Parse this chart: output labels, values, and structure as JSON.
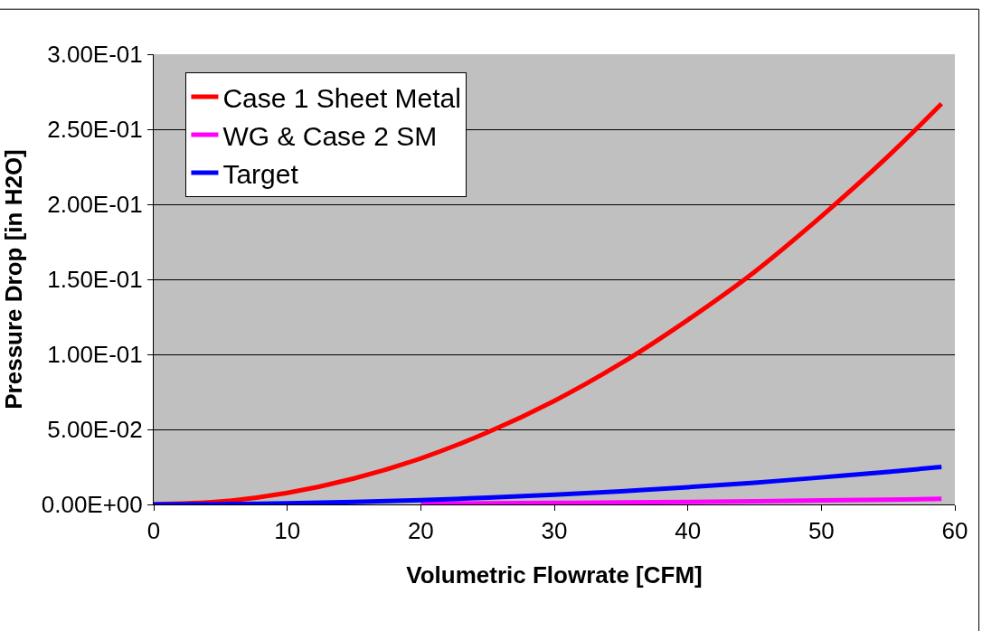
{
  "chart_data": {
    "type": "line",
    "xlabel": "Volumetric Flowrate [CFM]",
    "ylabel": "Pressure Drop [in H2O]",
    "x": [
      0,
      5,
      10,
      15,
      20,
      25,
      30,
      35,
      40,
      45,
      50,
      55,
      59
    ],
    "series": [
      {
        "name": "Case 1 Sheet Metal",
        "color": "#ff0000",
        "values": [
          0,
          0.0019,
          0.0077,
          0.0173,
          0.0307,
          0.048,
          0.069,
          0.094,
          0.123,
          0.155,
          0.192,
          0.232,
          0.267
        ]
      },
      {
        "name": "WG & Case 2 SM",
        "color": "#ff00ff",
        "values": [
          null,
          null,
          null,
          null,
          0.0004,
          0.0007,
          0.001,
          0.0013,
          0.0017,
          0.0021,
          0.0027,
          0.0032,
          0.0037
        ]
      },
      {
        "name": "Target",
        "color": "#0000ff",
        "values": [
          0,
          0.0002,
          0.0007,
          0.0016,
          0.0029,
          0.0045,
          0.0065,
          0.0088,
          0.0115,
          0.0145,
          0.018,
          0.0217,
          0.025
        ]
      }
    ],
    "xlim": [
      0,
      60
    ],
    "xticks": [
      0,
      10,
      20,
      30,
      40,
      50,
      60
    ],
    "ylim": [
      0,
      0.3
    ],
    "yticks": [
      {
        "value": 0,
        "label": "0.00E+00"
      },
      {
        "value": 0.05,
        "label": "5.00E-02"
      },
      {
        "value": 0.1,
        "label": "1.00E-01"
      },
      {
        "value": 0.15,
        "label": "1.50E-01"
      },
      {
        "value": 0.2,
        "label": "2.00E-01"
      },
      {
        "value": 0.25,
        "label": "2.50E-01"
      },
      {
        "value": 0.3,
        "label": "3.00E-01"
      }
    ],
    "grid": "y",
    "legend": "top left",
    "marker": "none",
    "line_style": "solid"
  }
}
